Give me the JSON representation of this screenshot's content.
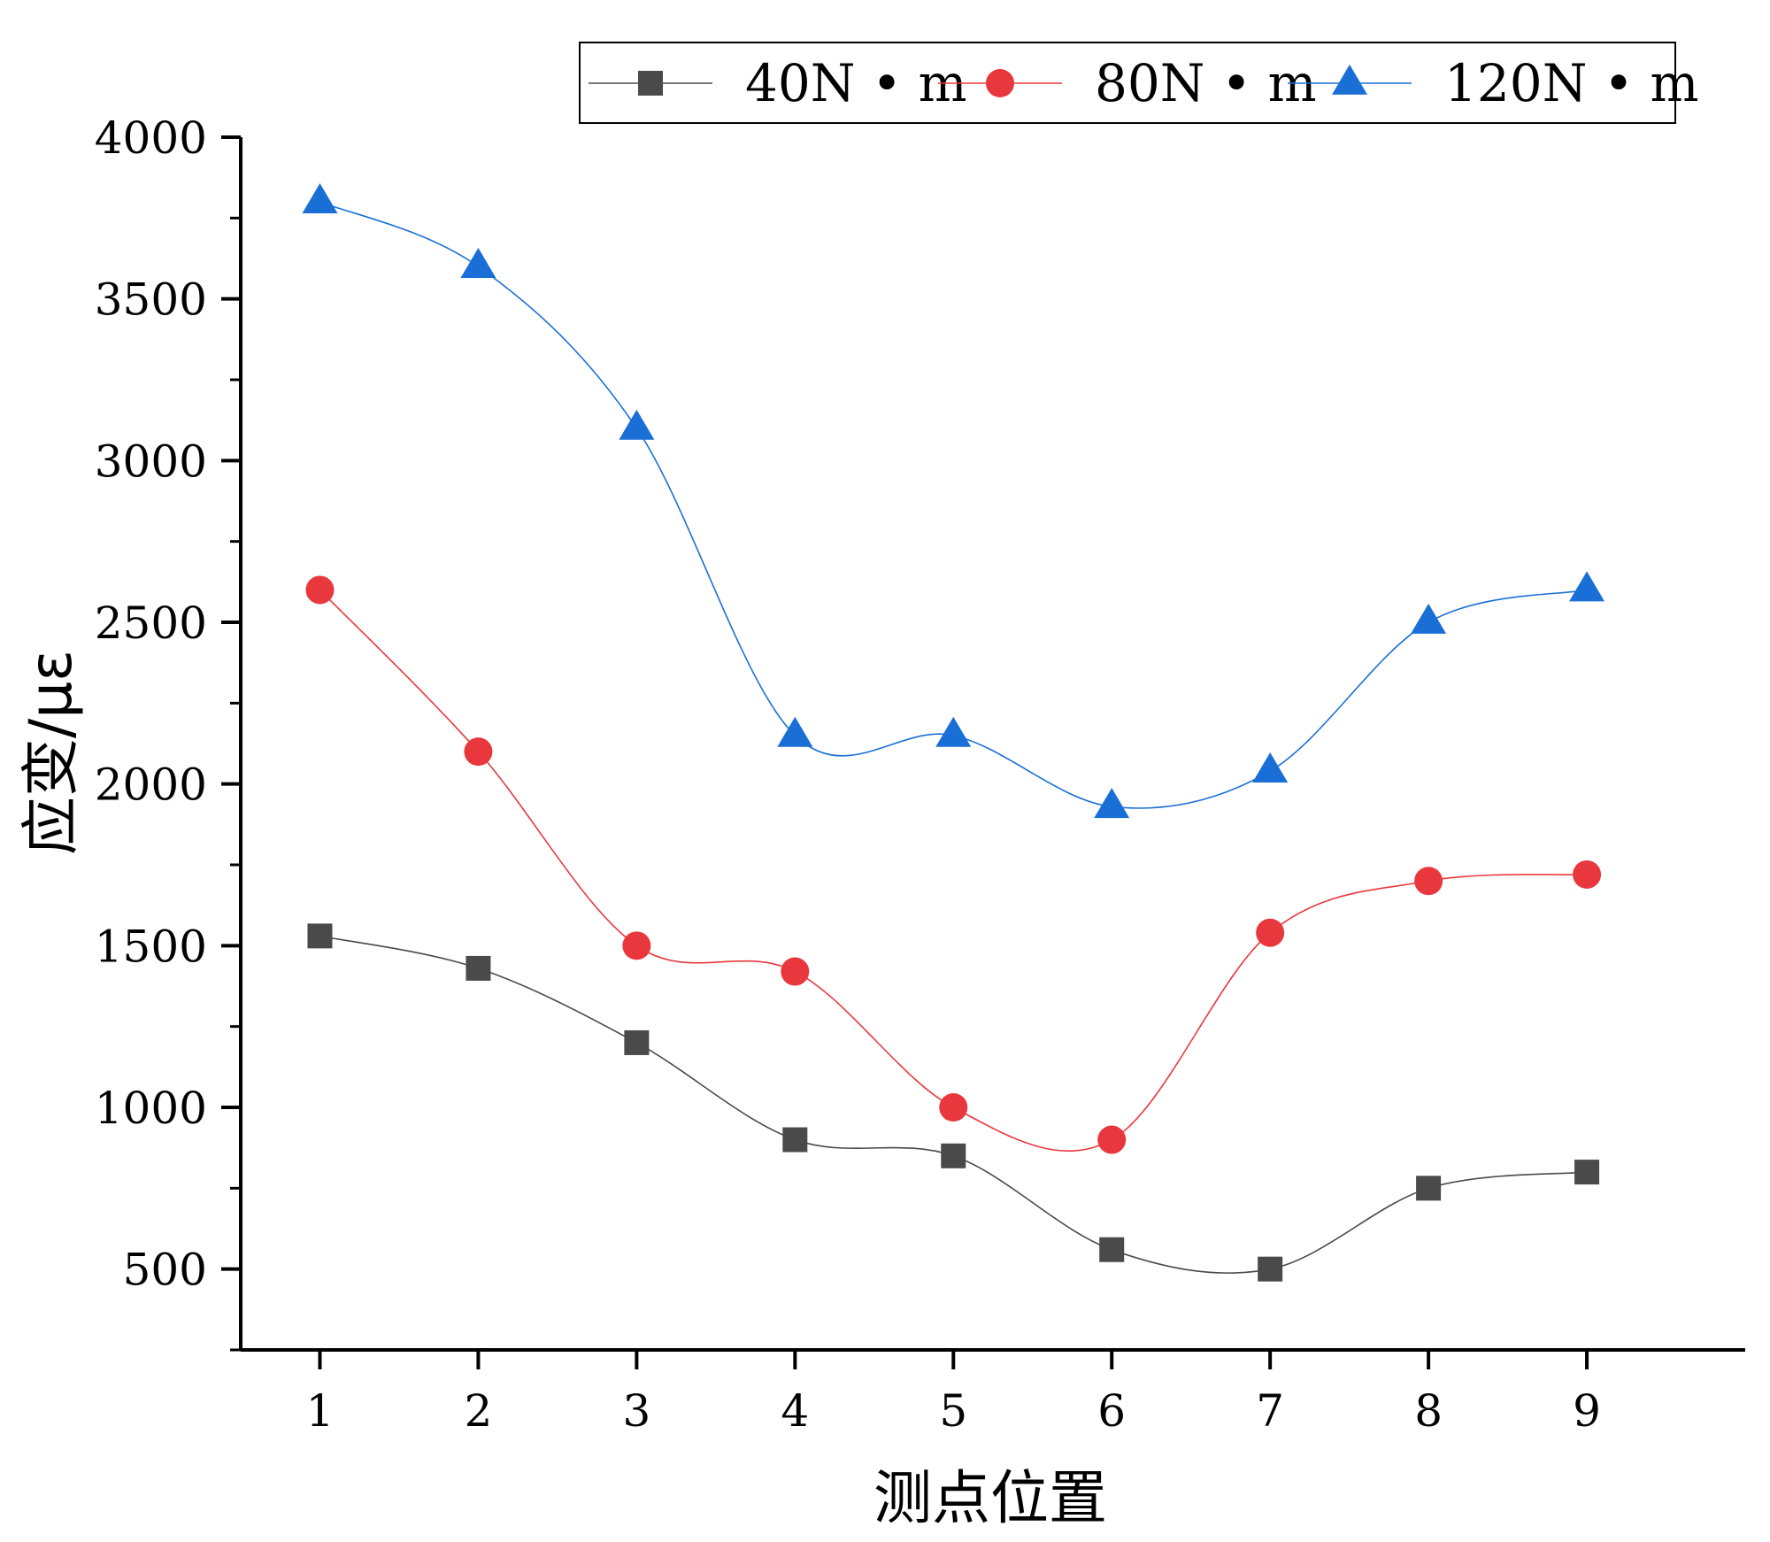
{
  "chart_data": {
    "type": "line",
    "xlabel": "测点位置",
    "ylabel": "应变/με",
    "x": [
      1,
      2,
      3,
      4,
      5,
      6,
      7,
      8,
      9
    ],
    "xticks": [
      "1",
      "2",
      "3",
      "4",
      "5",
      "6",
      "7",
      "8",
      "9"
    ],
    "yticks": [
      "500",
      "1000",
      "1500",
      "2000",
      "2500",
      "3000",
      "3500",
      "4000"
    ],
    "xlim": [
      0.5,
      10.0
    ],
    "ylim": [
      250,
      4000
    ],
    "grid": false,
    "legend_position": "top",
    "series": [
      {
        "name": "40N • m",
        "marker": "square",
        "color": "#4a4a4a",
        "values": [
          1530,
          1430,
          1200,
          900,
          850,
          560,
          500,
          750,
          800
        ]
      },
      {
        "name": "80N • m",
        "marker": "circle",
        "color": "#e8383d",
        "values": [
          2600,
          2100,
          1500,
          1420,
          1000,
          900,
          1540,
          1700,
          1720
        ]
      },
      {
        "name": "120N • m",
        "marker": "triangle",
        "color": "#1a6fd6",
        "values": [
          3800,
          3600,
          3100,
          2150,
          2150,
          1930,
          2040,
          2500,
          2600
        ]
      }
    ]
  }
}
